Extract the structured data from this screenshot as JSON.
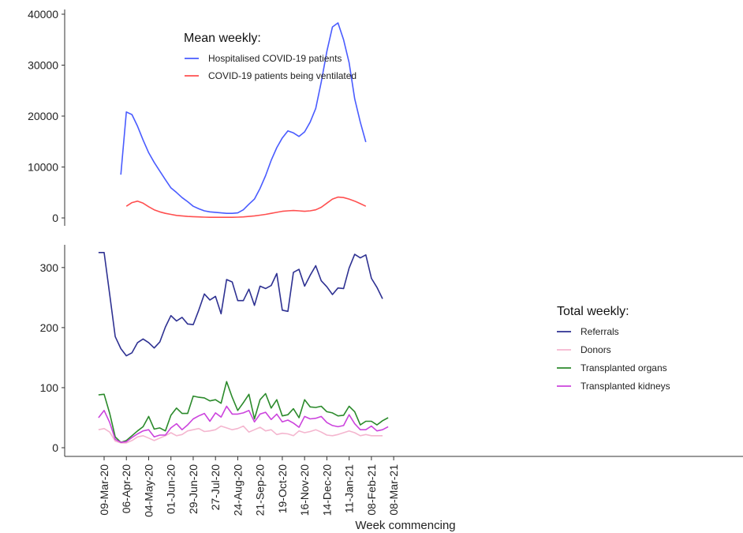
{
  "chart_data": [
    {
      "type": "line",
      "legend_title": "Mean weekly:",
      "legend_position": "top-left",
      "ylim": [
        0,
        40000
      ],
      "yticks": [
        "0",
        "10000",
        "20000",
        "30000",
        "40000"
      ],
      "grid": false,
      "x_start_week": "09-Mar-20",
      "series": [
        {
          "name": "Hospitalised COVID-19 patients",
          "color": "#4a5cff",
          "start_week": 3,
          "values": [
            8500,
            20800,
            20300,
            18000,
            15300,
            12800,
            10900,
            9200,
            7500,
            5900,
            5000,
            4000,
            3200,
            2300,
            1800,
            1400,
            1200,
            1100,
            1000,
            900,
            900,
            1000,
            1600,
            2700,
            3700,
            5800,
            8300,
            11300,
            13800,
            15700,
            17100,
            16700,
            16000,
            16900,
            18800,
            21500,
            26700,
            32700,
            37500,
            38300,
            35000,
            30500,
            23400,
            18800,
            14900
          ]
        },
        {
          "name": "COVID-19 patients being ventilated",
          "color": "#ff5050",
          "start_week": 4,
          "values": [
            2300,
            3000,
            3300,
            2900,
            2200,
            1600,
            1200,
            900,
            700,
            500,
            400,
            300,
            250,
            200,
            150,
            120,
            120,
            120,
            120,
            120,
            150,
            200,
            300,
            400,
            550,
            700,
            900,
            1100,
            1300,
            1400,
            1450,
            1400,
            1300,
            1400,
            1600,
            2100,
            2900,
            3700,
            4100,
            4000,
            3700,
            3300,
            2800,
            2300
          ]
        }
      ]
    },
    {
      "type": "line",
      "legend_title": "Total weekly:",
      "legend_position": "right",
      "ylim": [
        0,
        330
      ],
      "yticks": [
        "0",
        "100",
        "200",
        "300"
      ],
      "grid": false,
      "x_start_week": "09-Mar-20",
      "series": [
        {
          "name": "Referrals",
          "color": "#2e3192",
          "start_week": -1,
          "values": [
            325,
            325,
            255,
            185,
            165,
            153,
            158,
            175,
            181,
            175,
            166,
            176,
            201,
            220,
            211,
            217,
            206,
            205,
            229,
            256,
            246,
            252,
            223,
            280,
            276,
            245,
            245,
            264,
            237,
            269,
            265,
            270,
            290,
            229,
            227,
            292,
            297,
            269,
            287,
            303,
            278,
            268,
            255,
            266,
            265,
            299,
            322,
            316,
            321,
            282,
            267,
            248
          ]
        },
        {
          "name": "Donors",
          "color": "#f4b6cf",
          "start_week": -1,
          "values": [
            30,
            32,
            26,
            11,
            8,
            8,
            12,
            18,
            20,
            16,
            12,
            16,
            20,
            25,
            20,
            22,
            28,
            30,
            32,
            27,
            28,
            30,
            36,
            33,
            30,
            32,
            36,
            26,
            30,
            34,
            28,
            30,
            22,
            24,
            23,
            20,
            28,
            25,
            27,
            30,
            26,
            21,
            20,
            22,
            25,
            28,
            25,
            20,
            22,
            20,
            20,
            20
          ]
        },
        {
          "name": "Transplanted organs",
          "color": "#2b8a2b",
          "start_week": -1,
          "values": [
            88,
            89,
            57,
            18,
            9,
            12,
            20,
            28,
            35,
            52,
            31,
            33,
            28,
            54,
            66,
            57,
            57,
            86,
            84,
            83,
            78,
            80,
            74,
            110,
            84,
            62,
            75,
            89,
            48,
            80,
            90,
            66,
            80,
            53,
            55,
            65,
            50,
            80,
            68,
            67,
            69,
            60,
            58,
            53,
            54,
            69,
            60,
            38,
            44,
            44,
            38,
            45,
            50
          ]
        },
        {
          "name": "Transplanted kidneys",
          "color": "#cc44dd",
          "start_week": -1,
          "values": [
            50,
            62,
            42,
            14,
            9,
            10,
            17,
            23,
            28,
            30,
            18,
            21,
            21,
            33,
            40,
            30,
            38,
            48,
            53,
            57,
            44,
            58,
            51,
            69,
            56,
            56,
            58,
            62,
            43,
            56,
            59,
            47,
            56,
            43,
            46,
            41,
            34,
            52,
            48,
            49,
            52,
            42,
            37,
            35,
            37,
            55,
            40,
            30,
            30,
            36,
            28,
            30,
            35
          ]
        }
      ]
    }
  ],
  "x_axis": {
    "label": "Week commencing",
    "ticks": [
      "09-Mar-20",
      "06-Apr-20",
      "04-May-20",
      "01-Jun-20",
      "29-Jun-20",
      "27-Jul-20",
      "24-Aug-20",
      "21-Sep-20",
      "19-Oct-20",
      "16-Nov-20",
      "14-Dec-20",
      "11-Jan-21",
      "08-Feb-21",
      "08-Mar-21"
    ]
  }
}
